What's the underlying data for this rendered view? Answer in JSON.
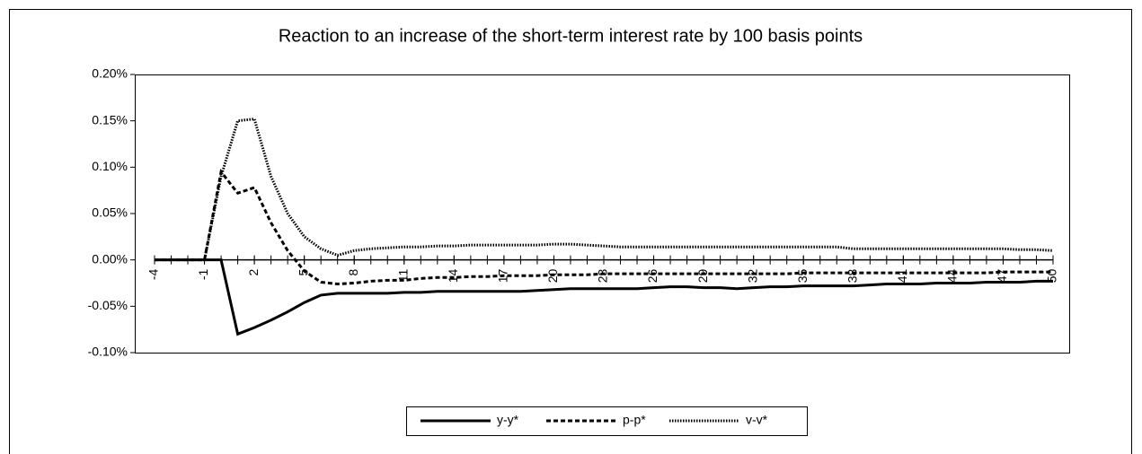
{
  "chart_data": {
    "type": "line",
    "title": "Reaction to an increase of the short-term interest rate by 100 basis points",
    "x": [
      -4,
      -3,
      -2,
      -1,
      0,
      1,
      2,
      3,
      4,
      5,
      6,
      7,
      8,
      9,
      10,
      11,
      12,
      13,
      14,
      15,
      16,
      17,
      18,
      19,
      20,
      21,
      22,
      23,
      24,
      25,
      26,
      27,
      28,
      29,
      30,
      31,
      32,
      33,
      34,
      35,
      36,
      37,
      38,
      39,
      40,
      41,
      42,
      43,
      44,
      45,
      46,
      47,
      48,
      49,
      50
    ],
    "xlim": [
      -4,
      50
    ],
    "xticks": [
      -4,
      -1,
      2,
      5,
      8,
      11,
      14,
      17,
      20,
      23,
      26,
      29,
      32,
      35,
      38,
      41,
      44,
      47,
      50
    ],
    "ylim": [
      -0.1,
      0.2
    ],
    "yticks": [
      {
        "value": -0.1,
        "label": "-0.10%"
      },
      {
        "value": -0.05,
        "label": "-0.05%"
      },
      {
        "value": 0,
        "label": "0.00%"
      },
      {
        "value": 0.05,
        "label": "0.05%"
      },
      {
        "value": 0.1,
        "label": "0.10%"
      },
      {
        "value": 0.15,
        "label": "0.15%"
      },
      {
        "value": 0.2,
        "label": "0.20%"
      }
    ],
    "legend": "bottom",
    "series": [
      {
        "name": "y-y*",
        "color": "#000000",
        "style": "solid",
        "values": [
          0,
          0,
          0,
          0,
          0,
          -0.08,
          -0.073,
          -0.065,
          -0.056,
          -0.046,
          -0.038,
          -0.036,
          -0.036,
          -0.036,
          -0.036,
          -0.035,
          -0.035,
          -0.034,
          -0.034,
          -0.034,
          -0.034,
          -0.034,
          -0.034,
          -0.033,
          -0.032,
          -0.031,
          -0.031,
          -0.031,
          -0.031,
          -0.031,
          -0.03,
          -0.029,
          -0.029,
          -0.03,
          -0.03,
          -0.031,
          -0.03,
          -0.029,
          -0.029,
          -0.028,
          -0.028,
          -0.028,
          -0.028,
          -0.027,
          -0.026,
          -0.026,
          -0.026,
          -0.025,
          -0.025,
          -0.025,
          -0.024,
          -0.024,
          -0.024,
          -0.023,
          -0.023
        ]
      },
      {
        "name": "p-p*",
        "color": "#000000",
        "style": "dashed",
        "values": [
          0,
          0,
          0,
          0,
          0.095,
          0.072,
          0.078,
          0.04,
          0.01,
          -0.012,
          -0.024,
          -0.026,
          -0.025,
          -0.023,
          -0.022,
          -0.022,
          -0.02,
          -0.019,
          -0.019,
          -0.018,
          -0.018,
          -0.017,
          -0.017,
          -0.017,
          -0.016,
          -0.016,
          -0.016,
          -0.015,
          -0.015,
          -0.015,
          -0.015,
          -0.015,
          -0.015,
          -0.015,
          -0.015,
          -0.015,
          -0.015,
          -0.015,
          -0.015,
          -0.014,
          -0.014,
          -0.014,
          -0.014,
          -0.014,
          -0.014,
          -0.014,
          -0.014,
          -0.014,
          -0.014,
          -0.014,
          -0.014,
          -0.013,
          -0.013,
          -0.013,
          -0.013
        ]
      },
      {
        "name": "v-v*",
        "color": "#000000",
        "style": "dotted",
        "values": [
          0,
          0,
          0,
          0,
          0.09,
          0.15,
          0.152,
          0.09,
          0.05,
          0.025,
          0.012,
          0.005,
          0.01,
          0.012,
          0.013,
          0.014,
          0.014,
          0.015,
          0.015,
          0.016,
          0.016,
          0.016,
          0.016,
          0.016,
          0.017,
          0.017,
          0.016,
          0.015,
          0.014,
          0.014,
          0.014,
          0.014,
          0.014,
          0.014,
          0.014,
          0.014,
          0.014,
          0.014,
          0.014,
          0.014,
          0.014,
          0.014,
          0.012,
          0.012,
          0.012,
          0.012,
          0.012,
          0.012,
          0.012,
          0.012,
          0.012,
          0.012,
          0.011,
          0.011,
          0.01
        ]
      }
    ]
  }
}
